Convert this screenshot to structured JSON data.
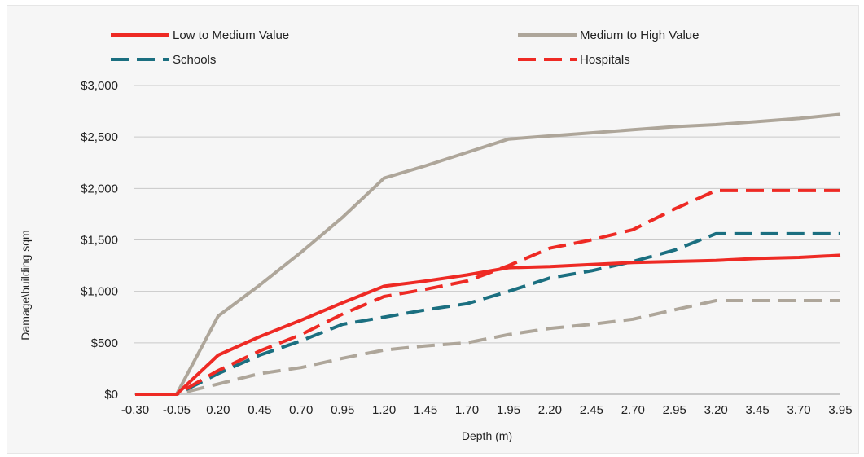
{
  "chart_data": {
    "type": "line",
    "xlabel": "Depth (m)",
    "ylabel": "Damage\\building sqm",
    "x": [
      -0.3,
      -0.05,
      0.2,
      0.45,
      0.7,
      0.95,
      1.2,
      1.45,
      1.7,
      1.95,
      2.2,
      2.45,
      2.7,
      2.95,
      3.2,
      3.45,
      3.7,
      3.95
    ],
    "x_tick_labels": [
      "-0.30",
      "-0.05",
      "0.20",
      "0.45",
      "0.70",
      "0.95",
      "1.20",
      "1.45",
      "1.70",
      "1.95",
      "2.20",
      "2.45",
      "2.70",
      "2.95",
      "3.20",
      "3.45",
      "3.70",
      "3.95"
    ],
    "ylim": [
      0,
      3000
    ],
    "y_ticks": [
      0,
      500,
      1000,
      1500,
      2000,
      2500,
      3000
    ],
    "y_tick_labels": [
      "$0",
      "$500",
      "$1,000",
      "$1,500",
      "$2,000",
      "$2,500",
      "$3,000"
    ],
    "grid": "horizontal",
    "legend_position": "top",
    "series": [
      {
        "name": "Low to Medium Value",
        "color": "#ee2a24",
        "style": "solid",
        "values": [
          0,
          0,
          380,
          560,
          720,
          890,
          1050,
          1100,
          1160,
          1230,
          1240,
          1260,
          1280,
          1290,
          1300,
          1320,
          1330,
          1350
        ]
      },
      {
        "name": "Medium to High Value",
        "color": "#aea69a",
        "style": "solid",
        "values": [
          0,
          0,
          760,
          1060,
          1380,
          1720,
          2100,
          2220,
          2350,
          2480,
          2510,
          2540,
          2570,
          2600,
          2620,
          2650,
          2680,
          2720
        ]
      },
      {
        "name": "Schools",
        "color": "#1b6f80",
        "style": "dashed",
        "values": [
          0,
          0,
          200,
          380,
          520,
          680,
          750,
          820,
          880,
          1000,
          1130,
          1200,
          1290,
          1400,
          1560,
          1560,
          1560,
          1560
        ]
      },
      {
        "name": "Hospitals",
        "color": "#ee2a24",
        "style": "dashed",
        "values": [
          0,
          0,
          230,
          420,
          580,
          780,
          950,
          1020,
          1100,
          1250,
          1420,
          1500,
          1600,
          1800,
          1980,
          1980,
          1980,
          1980
        ]
      },
      {
        "name": "",
        "color": "#aea69a",
        "style": "dashed",
        "values": [
          0,
          0,
          100,
          200,
          260,
          350,
          430,
          470,
          500,
          580,
          640,
          680,
          730,
          820,
          910,
          910,
          910,
          910
        ]
      }
    ]
  }
}
